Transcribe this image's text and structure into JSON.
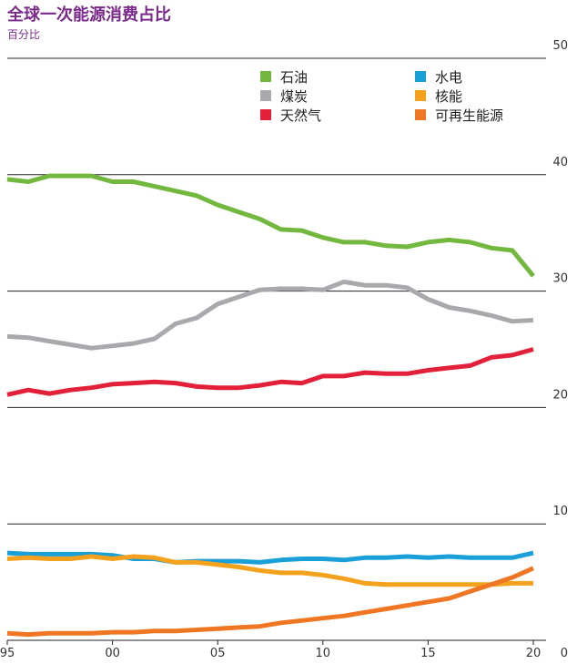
{
  "header": {
    "title": "全球一次能源消费占比",
    "subtitle": "百分比"
  },
  "chart_data": {
    "type": "line",
    "title": "全球一次能源消费占比",
    "subtitle": "百分比",
    "xlabel": "",
    "ylabel": "",
    "ylim": [
      0,
      50
    ],
    "xlim": [
      1995,
      2020
    ],
    "x": [
      1995,
      1996,
      1997,
      1998,
      1999,
      2000,
      2001,
      2002,
      2003,
      2004,
      2005,
      2006,
      2007,
      2008,
      2009,
      2010,
      2011,
      2012,
      2013,
      2014,
      2015,
      2016,
      2017,
      2018,
      2019,
      2020
    ],
    "x_tick_values": [
      1995,
      2000,
      2005,
      2010,
      2015,
      2020
    ],
    "x_tick_labels": [
      "95",
      "00",
      "05",
      "10",
      "15",
      "20"
    ],
    "y_ticks": [
      0,
      10,
      20,
      30,
      40,
      50
    ],
    "grid": "horizontal",
    "legend_position": "top",
    "series": [
      {
        "name": "石油",
        "color": "#72b83e",
        "values": [
          39.6,
          39.4,
          39.9,
          39.9,
          39.9,
          39.4,
          39.4,
          39.0,
          38.6,
          38.2,
          37.4,
          36.8,
          36.2,
          35.3,
          35.2,
          34.6,
          34.2,
          34.2,
          33.9,
          33.8,
          34.2,
          34.4,
          34.2,
          33.7,
          33.5,
          31.3
        ]
      },
      {
        "name": "煤炭",
        "color": "#a9a9ad",
        "values": [
          26.1,
          26.0,
          25.7,
          25.4,
          25.1,
          25.3,
          25.5,
          25.9,
          27.2,
          27.7,
          28.9,
          29.5,
          30.1,
          30.2,
          30.2,
          30.1,
          30.8,
          30.5,
          30.5,
          30.3,
          29.3,
          28.6,
          28.3,
          27.9,
          27.4,
          27.5
        ]
      },
      {
        "name": "天然气",
        "color": "#e2203a",
        "values": [
          21.1,
          21.5,
          21.2,
          21.5,
          21.7,
          22.0,
          22.1,
          22.2,
          22.1,
          21.8,
          21.7,
          21.7,
          21.9,
          22.2,
          22.1,
          22.7,
          22.7,
          23.0,
          22.9,
          22.9,
          23.2,
          23.4,
          23.6,
          24.3,
          24.5,
          25.0
        ]
      },
      {
        "name": "水电",
        "color": "#1a9fd9",
        "values": [
          7.5,
          7.4,
          7.4,
          7.4,
          7.4,
          7.3,
          7.0,
          7.0,
          6.7,
          6.8,
          6.8,
          6.8,
          6.7,
          6.9,
          7.0,
          7.0,
          6.9,
          7.1,
          7.1,
          7.2,
          7.1,
          7.2,
          7.1,
          7.1,
          7.1,
          7.5
        ]
      },
      {
        "name": "核能",
        "color": "#f4a21d",
        "values": [
          7.0,
          7.1,
          7.0,
          7.0,
          7.2,
          7.0,
          7.2,
          7.1,
          6.7,
          6.7,
          6.5,
          6.3,
          6.0,
          5.8,
          5.8,
          5.6,
          5.3,
          4.9,
          4.8,
          4.8,
          4.8,
          4.8,
          4.8,
          4.8,
          4.9,
          4.9
        ]
      },
      {
        "name": "可再生能源",
        "color": "#ef7622",
        "values": [
          0.6,
          0.5,
          0.6,
          0.6,
          0.6,
          0.7,
          0.7,
          0.8,
          0.8,
          0.9,
          1.0,
          1.1,
          1.2,
          1.5,
          1.7,
          1.9,
          2.1,
          2.4,
          2.7,
          3.0,
          3.3,
          3.6,
          4.2,
          4.8,
          5.4,
          6.2
        ]
      }
    ]
  }
}
